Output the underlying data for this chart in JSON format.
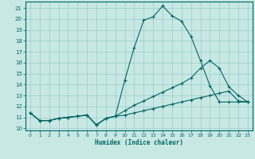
{
  "xlabel": "Humidex (Indice chaleur)",
  "xlim": [
    -0.5,
    23.5
  ],
  "ylim": [
    9.8,
    21.6
  ],
  "yticks": [
    10,
    11,
    12,
    13,
    14,
    15,
    16,
    17,
    18,
    19,
    20,
    21
  ],
  "xticks": [
    0,
    1,
    2,
    3,
    4,
    5,
    6,
    7,
    8,
    9,
    10,
    11,
    12,
    13,
    14,
    15,
    16,
    17,
    18,
    19,
    20,
    21,
    22,
    23
  ],
  "background_color": "#c8e8e4",
  "line_color": "#006666",
  "grid_color": "#99cccc",
  "lines": [
    {
      "x": [
        0,
        1,
        2,
        3,
        4,
        5,
        6,
        7,
        8,
        9,
        10,
        11,
        12,
        13,
        14,
        15,
        16,
        17,
        18,
        19,
        20,
        21,
        22,
        23
      ],
      "y": [
        11.4,
        10.7,
        10.7,
        10.9,
        11.0,
        11.1,
        11.2,
        10.3,
        10.9,
        11.1,
        14.4,
        17.4,
        19.9,
        20.2,
        21.2,
        20.3,
        19.8,
        18.4,
        16.2,
        13.9,
        12.4,
        12.4,
        12.4,
        12.4
      ]
    },
    {
      "x": [
        0,
        1,
        2,
        3,
        4,
        5,
        6,
        7,
        8,
        9,
        10,
        11,
        12,
        13,
        14,
        15,
        16,
        17,
        18,
        19,
        20,
        21,
        22,
        23
      ],
      "y": [
        11.4,
        10.7,
        10.7,
        10.9,
        11.0,
        11.1,
        11.2,
        10.3,
        10.9,
        11.1,
        11.6,
        12.1,
        12.5,
        12.9,
        13.3,
        13.7,
        14.1,
        14.6,
        15.5,
        16.2,
        15.5,
        13.8,
        13.0,
        12.4
      ]
    },
    {
      "x": [
        0,
        1,
        2,
        3,
        4,
        5,
        6,
        7,
        8,
        9,
        10,
        11,
        12,
        13,
        14,
        15,
        16,
        17,
        18,
        19,
        20,
        21,
        22,
        23
      ],
      "y": [
        11.4,
        10.7,
        10.7,
        10.9,
        11.0,
        11.1,
        11.2,
        10.3,
        10.9,
        11.1,
        11.2,
        11.4,
        11.6,
        11.8,
        12.0,
        12.2,
        12.4,
        12.6,
        12.8,
        13.0,
        13.2,
        13.4,
        12.5,
        12.4
      ]
    }
  ]
}
